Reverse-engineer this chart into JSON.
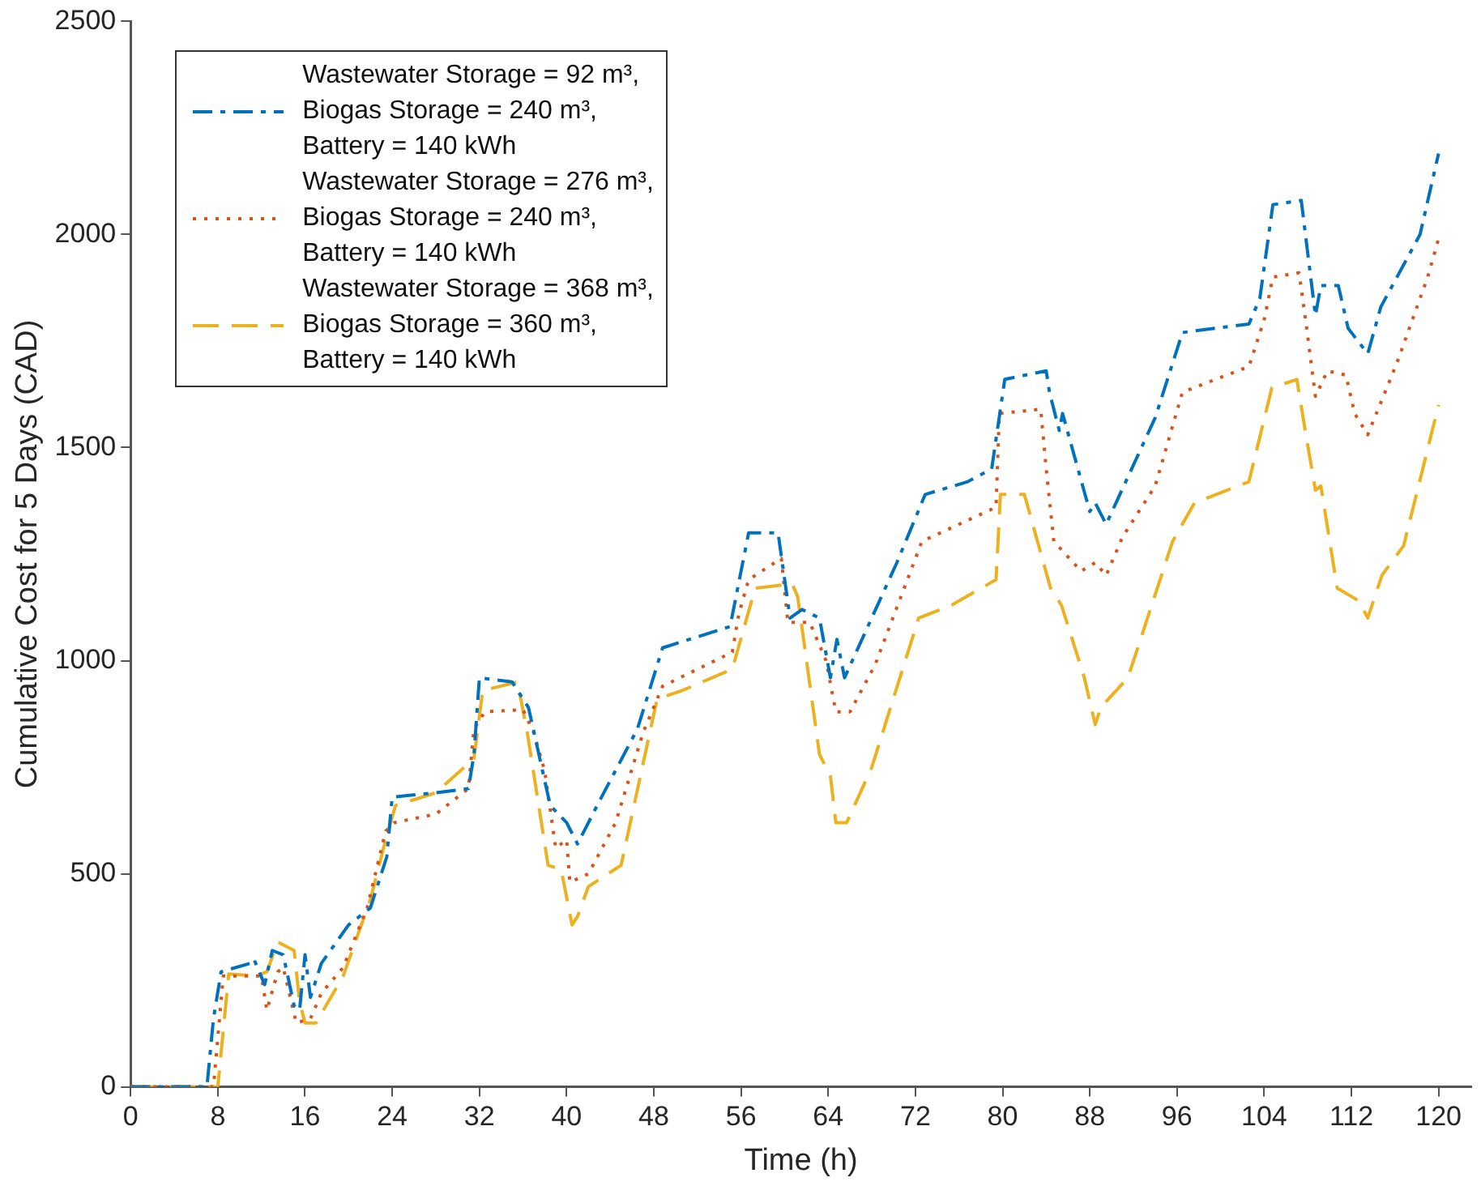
{
  "chart_data": {
    "type": "line",
    "xlabel": "Time (h)",
    "ylabel": "Cumulative Cost for 5 Days (CAD)",
    "xlim": [
      0,
      123
    ],
    "xticks": [
      0,
      8,
      16,
      24,
      32,
      40,
      48,
      56,
      64,
      72,
      80,
      88,
      96,
      104,
      112,
      120
    ],
    "ylim": [
      0,
      2500
    ],
    "yticks": [
      0,
      500,
      1000,
      1500,
      2000,
      2500
    ],
    "grid": false,
    "legend": "top left",
    "marker": "none",
    "series": [
      {
        "name": "Wastewater Storage = 92 m³, Biogas Storage = 240 m³, Battery = 140 kWh",
        "color": "#0072bd",
        "line_style": "dashdot",
        "x": [
          0,
          7,
          7.6,
          8.3,
          11,
          11.3,
          12.3,
          13,
          14,
          15,
          15.5,
          16,
          16.5,
          17.5,
          20,
          22,
          23.5,
          24,
          28,
          31,
          31.5,
          32,
          35,
          36.5,
          38.5,
          40,
          41,
          43,
          46.5,
          48.8,
          55,
          56.7,
          59.4,
          60.5,
          61.6,
          63.2,
          64.2,
          64.8,
          65.5,
          70.3,
          72.9,
          76.8,
          79,
          80.2,
          84,
          84.3,
          85.2,
          85.5,
          88,
          88.5,
          89.5,
          94,
          96.5,
          102.6,
          103.6,
          104.8,
          107.4,
          108.7,
          109.2,
          110.8,
          111.7,
          113.5,
          114.7,
          118.3,
          120
        ],
        "values": [
          0,
          0,
          160,
          270,
          290,
          300,
          240,
          320,
          310,
          190,
          180,
          310,
          210,
          290,
          380,
          420,
          540,
          680,
          690,
          700,
          780,
          960,
          950,
          890,
          660,
          620,
          570,
          670,
          840,
          1030,
          1080,
          1300,
          1300,
          1100,
          1120,
          1100,
          960,
          1050,
          960,
          1230,
          1390,
          1420,
          1450,
          1660,
          1680,
          1630,
          1540,
          1580,
          1350,
          1370,
          1320,
          1570,
          1770,
          1790,
          1850,
          2070,
          2080,
          1810,
          1880,
          1880,
          1780,
          1720,
          1830,
          2000,
          2190
        ]
      },
      {
        "name": "Wastewater Storage = 276 m³, Biogas Storage = 240 m³, Battery = 140 kWh",
        "color": "#d95319",
        "line_style": "dotted",
        "x": [
          0,
          7.6,
          8.5,
          12,
          12.5,
          13.5,
          14,
          15.2,
          16.5,
          17.5,
          19.5,
          21.7,
          23.4,
          24.2,
          28,
          31,
          31.5,
          32.5,
          36,
          37,
          38,
          39,
          40,
          40.3,
          42,
          44.5,
          47,
          48.8,
          55.2,
          55.8,
          56.7,
          59.7,
          60.3,
          62.3,
          63.8,
          64.7,
          66,
          68.3,
          72.6,
          79.4,
          79.7,
          83.5,
          84,
          84.7,
          87.2,
          88.5,
          89.5,
          91,
          94,
          96.5,
          102.6,
          104,
          104.8,
          107.2,
          107.9,
          108.7,
          109.8,
          111.5,
          112.3,
          113.5,
          116.2,
          119,
          120
        ],
        "values": [
          0,
          0,
          260,
          260,
          180,
          270,
          280,
          150,
          160,
          220,
          280,
          420,
          600,
          620,
          640,
          700,
          840,
          880,
          885,
          830,
          740,
          560,
          580,
          480,
          500,
          620,
          830,
          940,
          1020,
          1110,
          1190,
          1240,
          1090,
          1090,
          1000,
          880,
          880,
          990,
          1280,
          1360,
          1580,
          1590,
          1450,
          1280,
          1210,
          1230,
          1200,
          1290,
          1410,
          1630,
          1690,
          1800,
          1900,
          1910,
          1780,
          1620,
          1680,
          1670,
          1580,
          1530,
          1700,
          1900,
          1990
        ]
      },
      {
        "name": "Wastewater Storage = 368 m³, Biogas Storage = 360 m³, Battery = 140 kWh",
        "color": "#edb120",
        "line_style": "dashed",
        "x": [
          0,
          8,
          9,
          11.5,
          12.5,
          13.5,
          15,
          15.5,
          16,
          17,
          19.5,
          22,
          23.4,
          24.3,
          28,
          31.5,
          32.3,
          35.5,
          36.4,
          38.3,
          39.5,
          40.5,
          41,
          42,
          45,
          48.3,
          50.6,
          55.2,
          57.3,
          60.7,
          61.2,
          63.2,
          64.2,
          64.7,
          65.7,
          68,
          72.3,
          75.3,
          79.4,
          79.8,
          82,
          84.4,
          85.4,
          87.5,
          88.5,
          89,
          91.5,
          95.6,
          97.6,
          102.6,
          104.7,
          107,
          107.7,
          108.7,
          109.2,
          110.7,
          112.7,
          113.5,
          114.8,
          116.8,
          120
        ],
        "values": [
          0,
          0,
          265,
          260,
          270,
          340,
          320,
          200,
          150,
          150,
          260,
          440,
          580,
          660,
          690,
          770,
          930,
          950,
          830,
          520,
          510,
          380,
          400,
          470,
          520,
          910,
          930,
          980,
          1170,
          1180,
          1150,
          780,
          730,
          620,
          620,
          750,
          1100,
          1130,
          1190,
          1390,
          1390,
          1170,
          1130,
          960,
          850,
          890,
          960,
          1280,
          1370,
          1420,
          1640,
          1660,
          1550,
          1400,
          1410,
          1170,
          1140,
          1100,
          1200,
          1270,
          1600
        ]
      }
    ]
  }
}
